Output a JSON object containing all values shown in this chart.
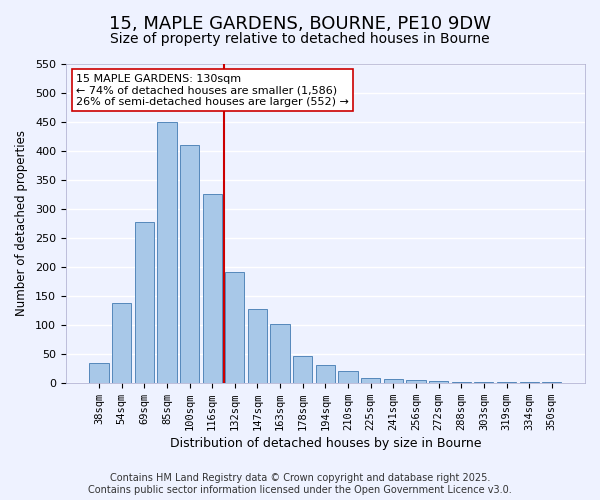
{
  "title": "15, MAPLE GARDENS, BOURNE, PE10 9DW",
  "subtitle": "Size of property relative to detached houses in Bourne",
  "xlabel": "Distribution of detached houses by size in Bourne",
  "ylabel": "Number of detached properties",
  "bar_color": "#a8c8e8",
  "bar_edge_color": "#5588bb",
  "categories": [
    "38sqm",
    "54sqm",
    "69sqm",
    "85sqm",
    "100sqm",
    "116sqm",
    "132sqm",
    "147sqm",
    "163sqm",
    "178sqm",
    "194sqm",
    "210sqm",
    "225sqm",
    "241sqm",
    "256sqm",
    "272sqm",
    "288sqm",
    "303sqm",
    "319sqm",
    "334sqm",
    "350sqm"
  ],
  "values": [
    35,
    137,
    277,
    450,
    410,
    325,
    192,
    127,
    101,
    46,
    31,
    20,
    8,
    7,
    5,
    3,
    2,
    1,
    1,
    1,
    2
  ],
  "ylim": [
    0,
    550
  ],
  "yticks": [
    0,
    50,
    100,
    150,
    200,
    250,
    300,
    350,
    400,
    450,
    500,
    550
  ],
  "vline_x": 5.5,
  "vline_color": "#cc0000",
  "annotation_title": "15 MAPLE GARDENS: 130sqm",
  "annotation_line1": "← 74% of detached houses are smaller (1,586)",
  "annotation_line2": "26% of semi-detached houses are larger (552) →",
  "annotation_box_color": "#ffffff",
  "annotation_box_edge": "#cc0000",
  "footer1": "Contains HM Land Registry data © Crown copyright and database right 2025.",
  "footer2": "Contains public sector information licensed under the Open Government Licence v3.0.",
  "bg_color": "#eef2ff",
  "grid_color": "#ffffff",
  "title_fontsize": 13,
  "subtitle_fontsize": 10,
  "tick_fontsize": 7.5,
  "footer_fontsize": 7
}
